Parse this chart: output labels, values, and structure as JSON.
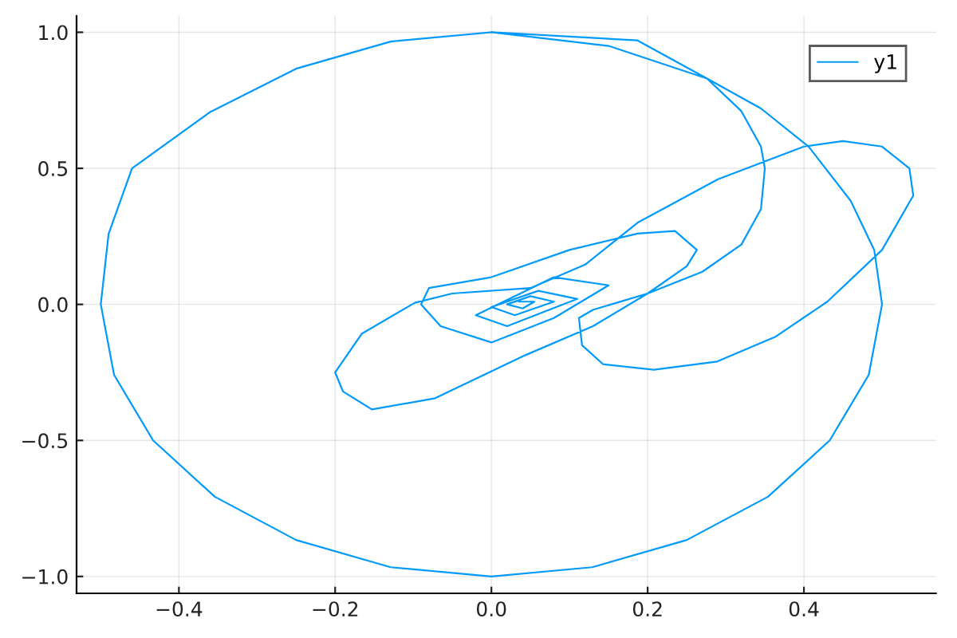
{
  "chart_data": {
    "type": "line",
    "legend": "top right",
    "grid": true,
    "marker": "none",
    "line_style": "solid",
    "xlim": [
      -0.531,
      0.569
    ],
    "ylim": [
      -1.062,
      1.06
    ],
    "xticks": [
      {
        "value": -0.4,
        "label": "−0.4"
      },
      {
        "value": -0.2,
        "label": "−0.2"
      },
      {
        "value": 0.0,
        "label": "0.0"
      },
      0.2,
      0.4
    ],
    "yticks": [
      {
        "value": -1.0,
        "label": "−1.0"
      },
      {
        "value": -0.5,
        "label": "−0.5"
      },
      {
        "value": 0.0,
        "label": "0.0"
      },
      0.5,
      {
        "value": 1.0,
        "label": "1.0"
      }
    ],
    "series": [
      {
        "name": "y1",
        "color": "#009afa",
        "x": [
          0,
          -0.129,
          -0.25,
          -0.36,
          -0.46,
          -0.49,
          -0.5,
          -0.483,
          -0.433,
          -0.354,
          -0.25,
          -0.129,
          0,
          0.129,
          0.25,
          0.354,
          0.433,
          0.483,
          0.5,
          0.49,
          0.46,
          0.406,
          0.345,
          0.276,
          0.15,
          0.0,
          0.187,
          0.276,
          0.32,
          0.345,
          0.35,
          0.345,
          0.32,
          0.27,
          0.2,
          0.13,
          0.112,
          0.116,
          0.143,
          0.208,
          0.289,
          0.363,
          0.43,
          0.5,
          0.54,
          0.535,
          0.5,
          0.45,
          0.4,
          0.29,
          0.187,
          0.12,
          0.05,
          -0.05,
          -0.098,
          -0.166,
          -0.2,
          -0.19,
          -0.153,
          -0.072,
          0.044,
          0.13,
          0.2,
          0.25,
          0.263,
          0.235,
          0.187,
          0.1,
          0.0,
          -0.08,
          -0.09,
          -0.065,
          0.0,
          0.08,
          0.15,
          0.08,
          -0.02,
          0.02,
          0.11,
          0.06,
          0.0,
          0.03,
          0.08,
          0.05,
          0.02,
          0.04,
          0.055,
          0.035
        ],
        "values": [
          1.0,
          0.966,
          0.866,
          0.707,
          0.5,
          0.259,
          0.0,
          -0.259,
          -0.5,
          -0.707,
          -0.866,
          -0.966,
          -1.0,
          -0.966,
          -0.866,
          -0.707,
          -0.5,
          -0.259,
          0.0,
          0.2,
          0.38,
          0.58,
          0.72,
          0.83,
          0.95,
          1.0,
          0.97,
          0.83,
          0.71,
          0.58,
          0.5,
          0.35,
          0.22,
          0.12,
          0.04,
          -0.02,
          -0.05,
          -0.15,
          -0.22,
          -0.24,
          -0.21,
          -0.12,
          0.01,
          0.2,
          0.4,
          0.5,
          0.58,
          0.6,
          0.58,
          0.46,
          0.3,
          0.146,
          0.06,
          0.04,
          0.006,
          -0.108,
          -0.25,
          -0.32,
          -0.386,
          -0.345,
          -0.186,
          -0.08,
          0.04,
          0.14,
          0.2,
          0.27,
          0.26,
          0.2,
          0.1,
          0.06,
          0.0,
          -0.08,
          -0.14,
          -0.05,
          0.07,
          0.1,
          -0.04,
          -0.08,
          0.02,
          0.05,
          -0.01,
          -0.04,
          0.01,
          0.03,
          0.0,
          -0.015,
          0.01,
          0.01
        ]
      }
    ]
  }
}
